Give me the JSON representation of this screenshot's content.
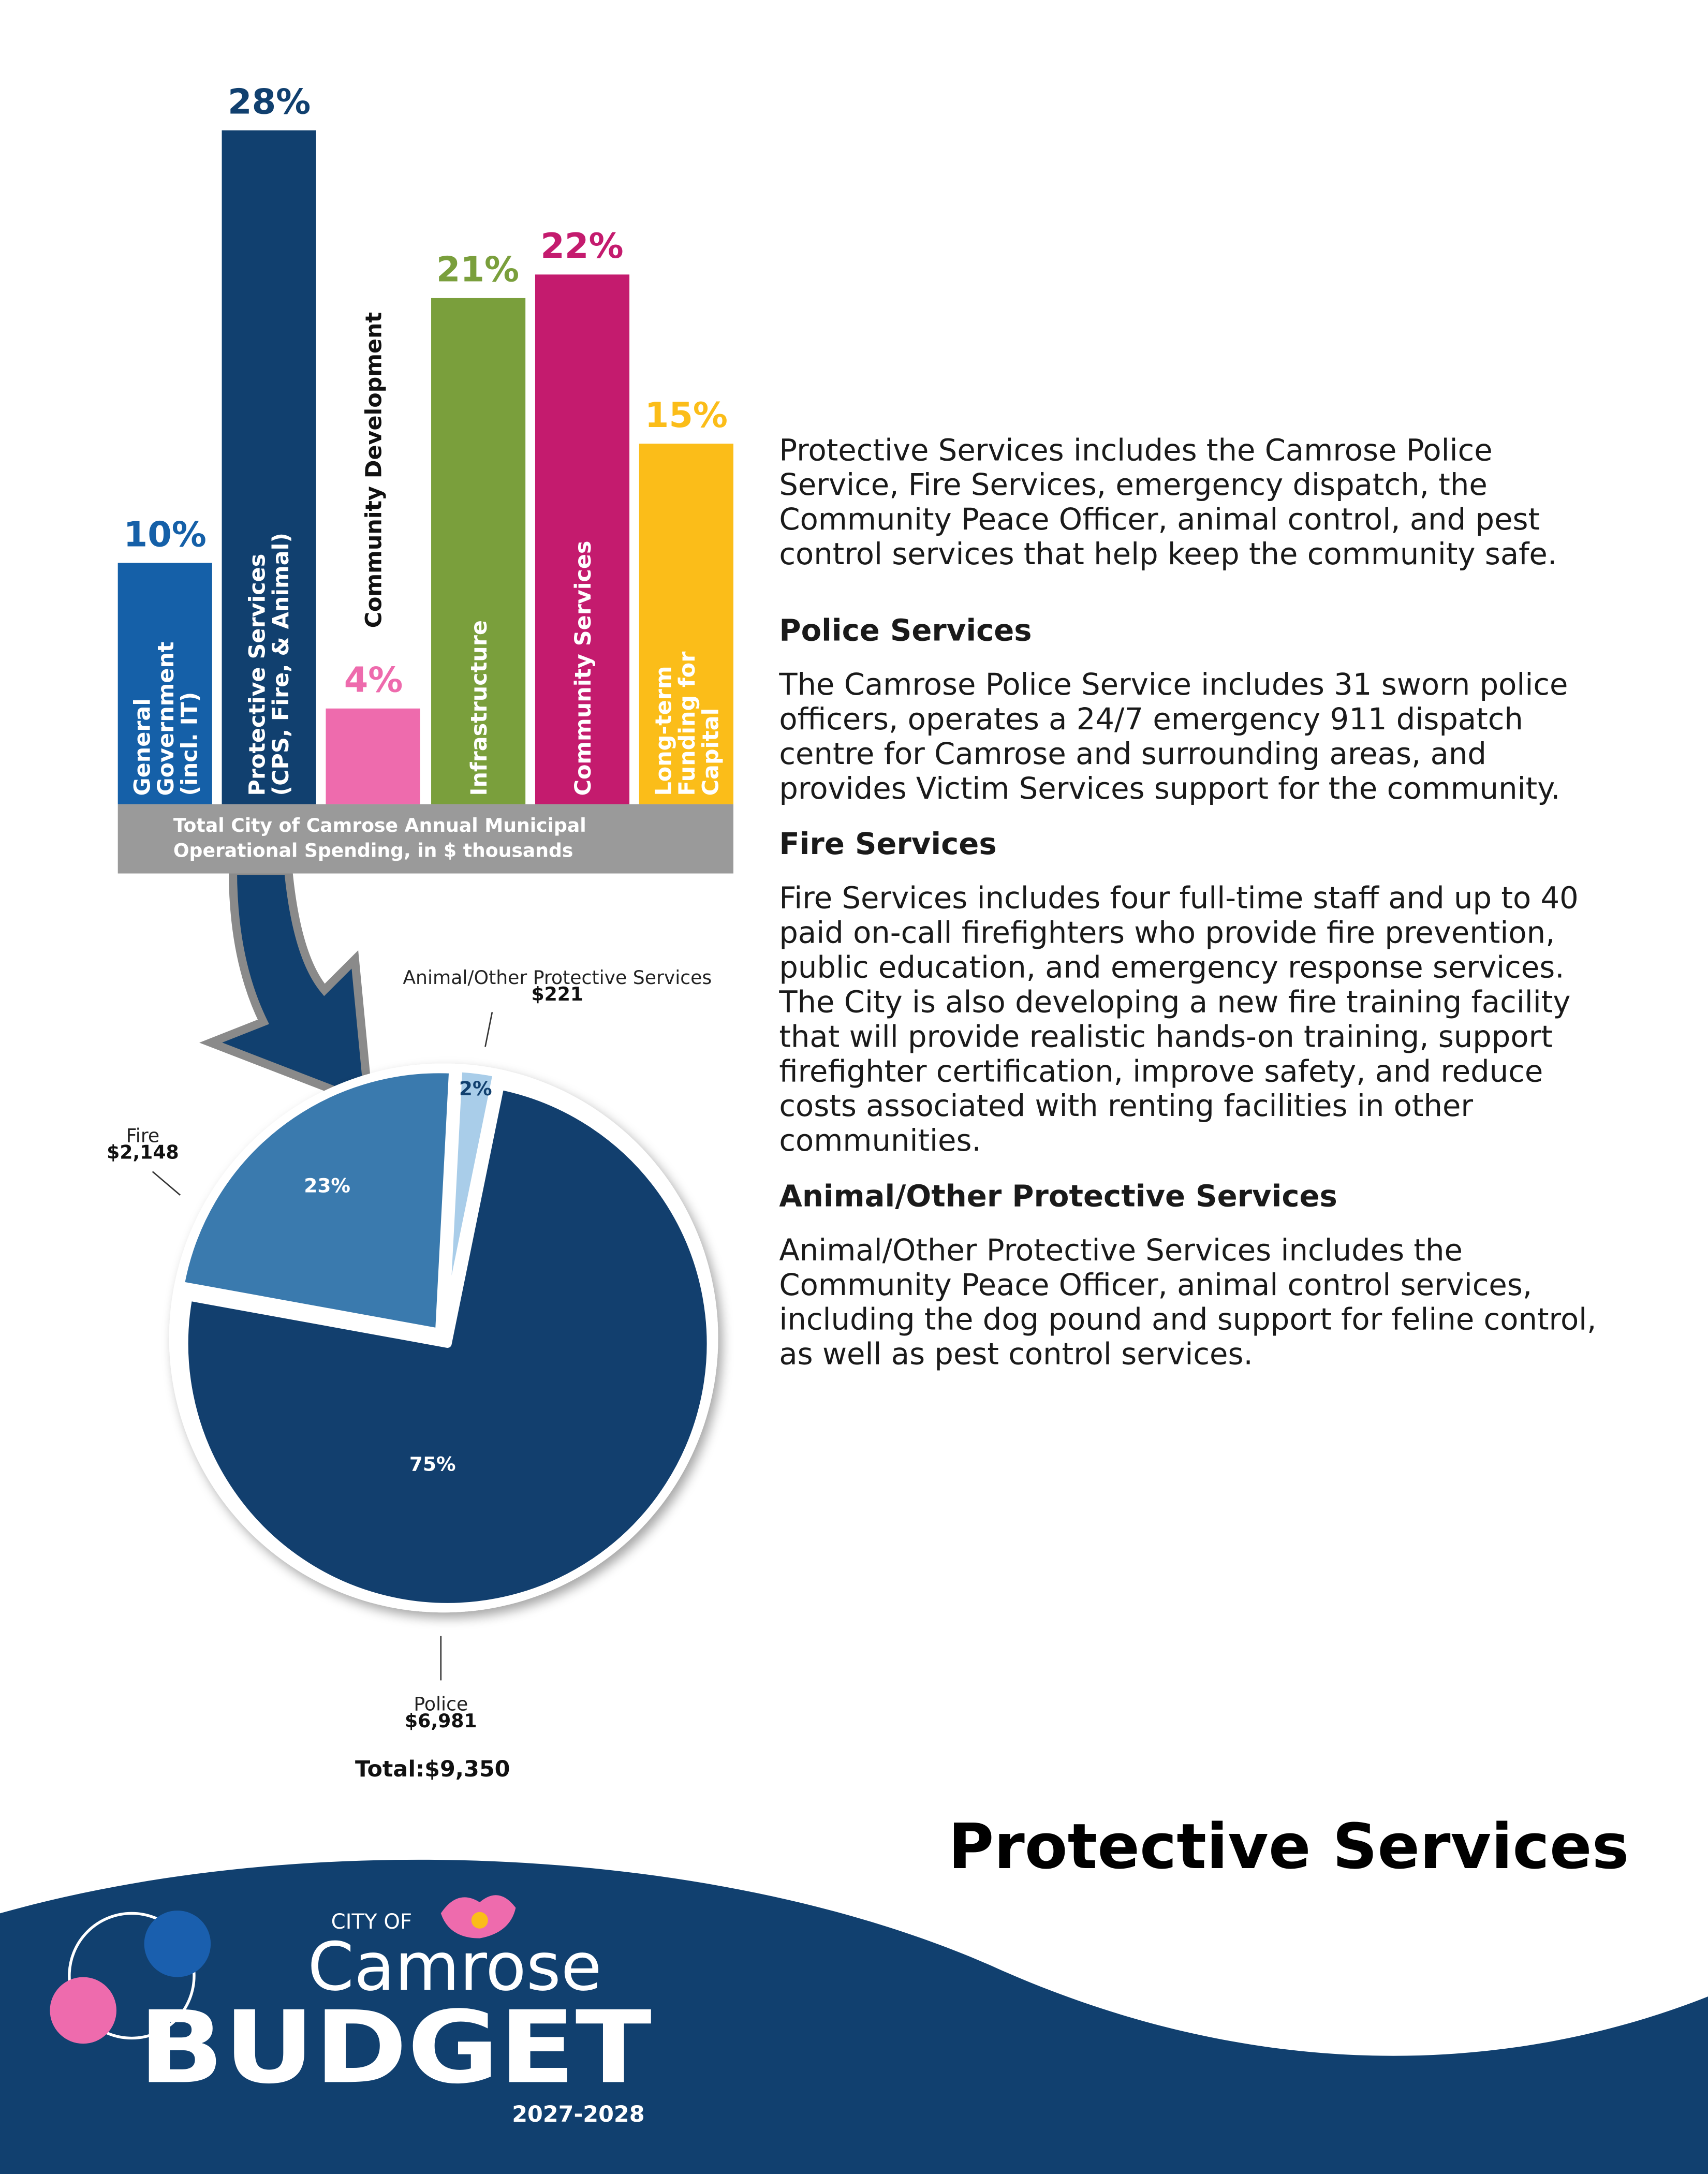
{
  "chart_data": [
    {
      "type": "bar",
      "categories": [
        "General Government (incl. IT)",
        "Protective Services (CPS, Fire, & Animal)",
        "Community Development",
        "Infrastructure",
        "Community Services",
        "Long-term Funding for Capital"
      ],
      "values": [
        10,
        28,
        4,
        21,
        22,
        15
      ],
      "value_labels": [
        "10%",
        "28%",
        "4%",
        "21%",
        "22%",
        "15%"
      ],
      "colors": [
        "#1560a8",
        "#11406f",
        "#ee6bad",
        "#7a9f3c",
        "#c41b6e",
        "#fbbd19"
      ],
      "x_label": "Total City of Camrose Annual Municipal Operational Spending, in $ thousands"
    },
    {
      "type": "pie",
      "categories": [
        "Animal/Other Protective Services",
        "Police",
        "Fire"
      ],
      "values": [
        221,
        6981,
        2148
      ],
      "value_labels": [
        "$221",
        "$6,981",
        "$2,148"
      ],
      "percent_labels": [
        "2%",
        "75%",
        "23%"
      ],
      "colors": [
        "#a9cde9",
        "#123f6e",
        "#3a7aae"
      ],
      "total_label": "Total:$9,350"
    }
  ],
  "text": {
    "intro": "Protective Services includes the Camrose Police Service, Fire Services, emergency dispatch, the Community Peace Officer, animal control, and pest control services that help keep the community safe.",
    "sections": [
      {
        "heading": "Police Services",
        "body": "The Camrose Police Service includes 31 sworn police officers, operates a 24/7 emergency 911 dispatch centre for Camrose and surrounding areas, and provides Victim Services support for the community."
      },
      {
        "heading": "Fire Services",
        "body": "Fire Services includes four full-time staff and up to 40 paid on-call firefighters who provide fire prevention, public education, and emergency response services. The City is also developing a new fire training facility that will provide realistic hands-on training, support firefighter certification, improve safety, and reduce costs associated with renting facilities in other communities."
      },
      {
        "heading": "Animal/Other Protective Services",
        "body": "Animal/Other Protective Services includes the Community Peace Officer, animal control services, including the dog pound and support for feline control, as well as pest control services."
      }
    ]
  },
  "footer": {
    "page_title": "Protective Services",
    "city_of": "CITY OF",
    "city": "Camrose",
    "budget": "BUDGET",
    "years": "2027-2028"
  }
}
